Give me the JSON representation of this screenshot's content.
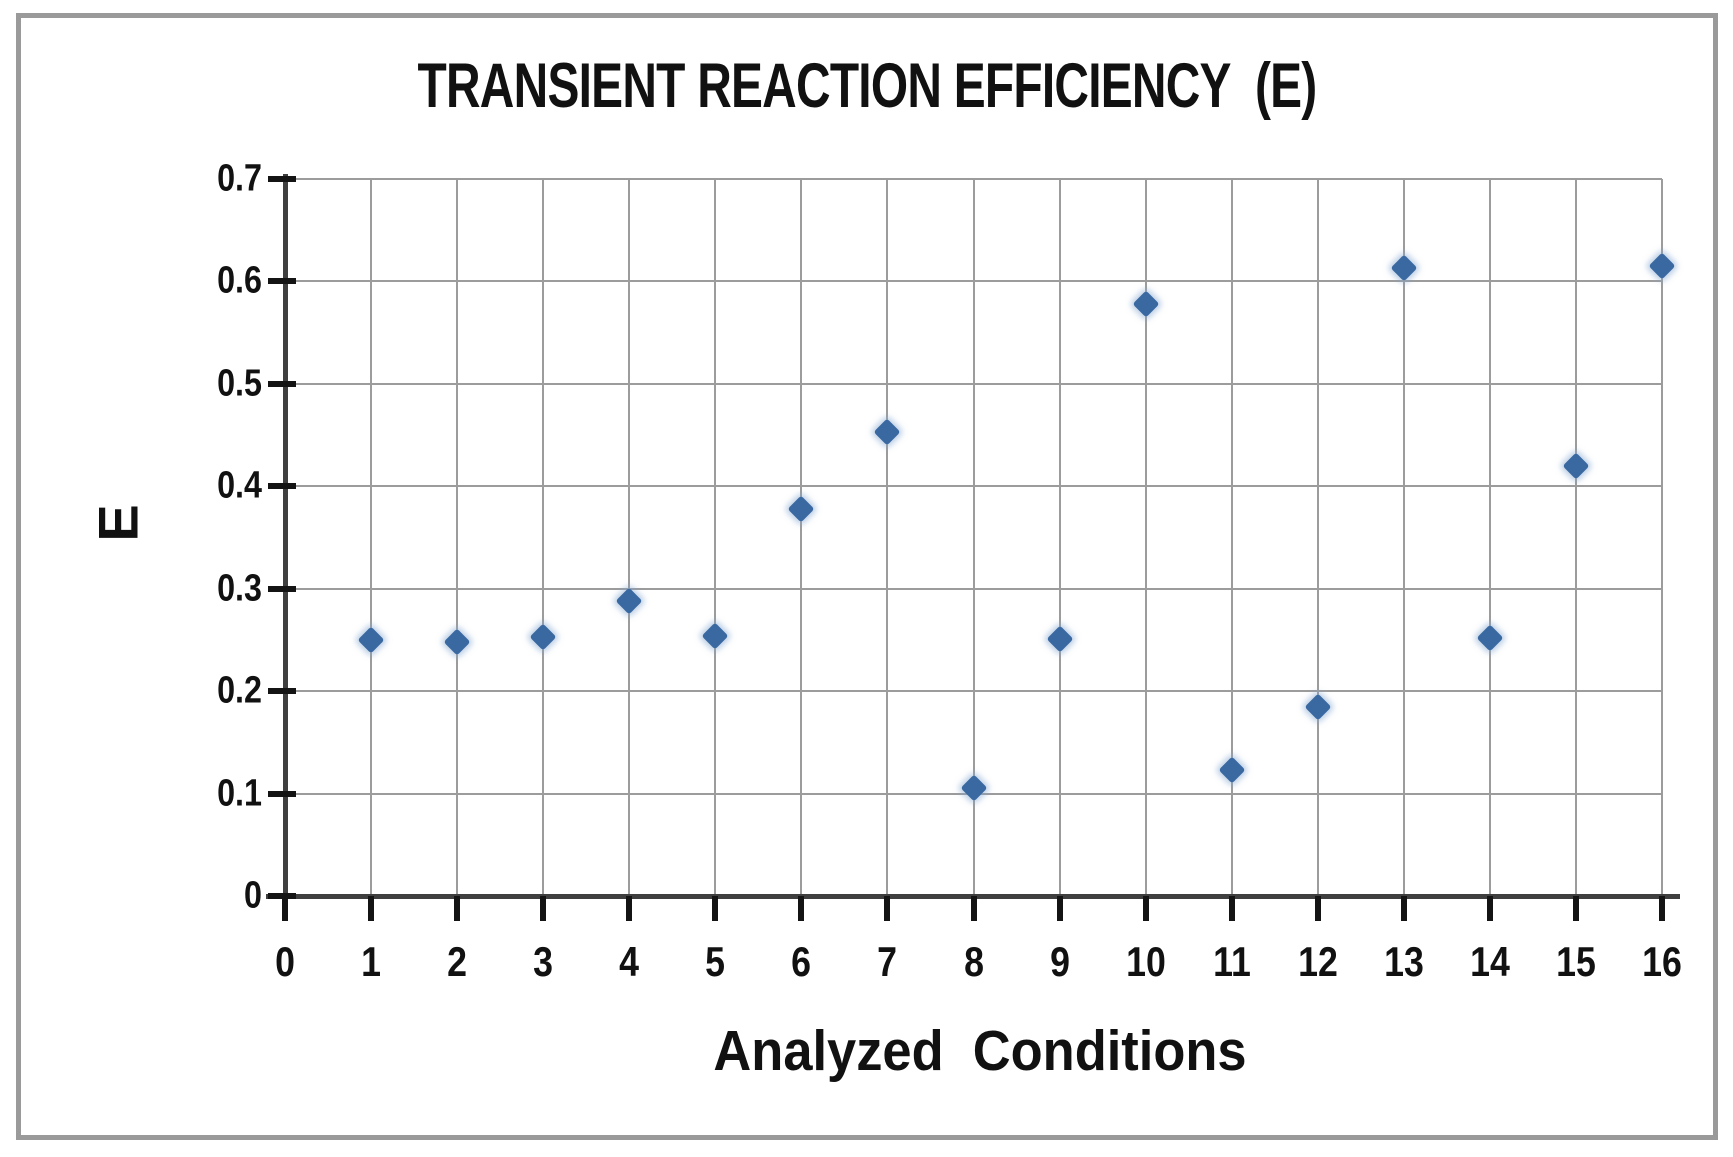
{
  "chart_data": {
    "type": "scatter",
    "title": "TRANSIENT REACTION EFFICIENCY  (E)",
    "xlabel": "Analyzed  Conditions",
    "ylabel": "E",
    "xlim": [
      0,
      16
    ],
    "ylim": [
      0,
      0.7
    ],
    "x_ticks": [
      "0",
      "1",
      "2",
      "3",
      "4",
      "5",
      "6",
      "7",
      "8",
      "9",
      "10",
      "11",
      "12",
      "13",
      "14",
      "15",
      "16"
    ],
    "y_ticks": [
      "0",
      "0.1",
      "0.2",
      "0.3",
      "0.4",
      "0.5",
      "0.6",
      "0.7"
    ],
    "grid": true,
    "legend_position": "none",
    "marker": "diamond",
    "series": [
      {
        "name": "E",
        "x": [
          1,
          2,
          3,
          4,
          5,
          6,
          7,
          8,
          9,
          10,
          11,
          12,
          13,
          14,
          15,
          16
        ],
        "y": [
          0.25,
          0.248,
          0.253,
          0.288,
          0.254,
          0.378,
          0.453,
          0.105,
          0.251,
          0.578,
          0.123,
          0.185,
          0.613,
          0.252,
          0.42,
          0.615
        ]
      }
    ],
    "colors": {
      "marker": "#3A69A1",
      "marker_halo": "rgba(130,165,210,0.5)",
      "gridline": "#9C9C9C",
      "axis": "#3F3F3F",
      "tick": "#141414",
      "text": "#111111",
      "frame": "#9A9A9A",
      "background": "#FFFFFF"
    }
  }
}
